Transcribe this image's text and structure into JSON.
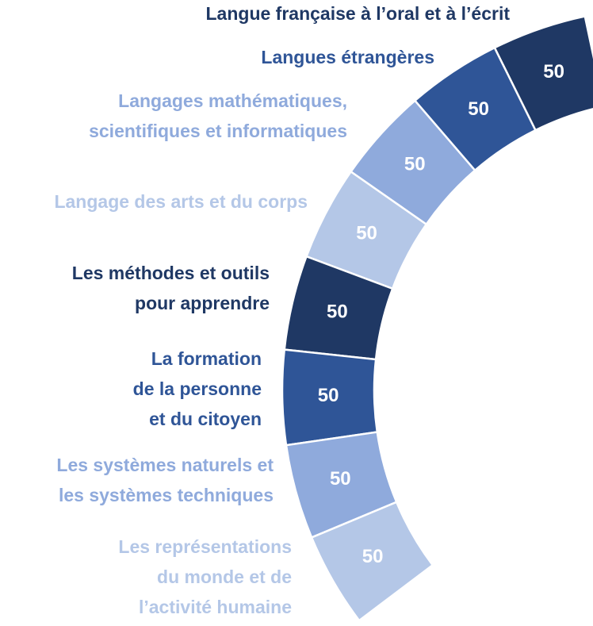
{
  "chart_data": {
    "type": "donut",
    "categories": [
      [
        "Langue française à l’oral et à l’écrit"
      ],
      [
        "Langues étrangères"
      ],
      [
        "Langages mathématiques,",
        "scientifiques et informatiques"
      ],
      [
        "Langage des arts et du corps"
      ],
      [
        "Les méthodes et outils",
        "pour apprendre"
      ],
      [
        "La formation",
        "de la personne",
        "et du citoyen"
      ],
      [
        "Les systèmes naturels et",
        "les systèmes techniques"
      ],
      [
        "Les représentations",
        "du monde et de",
        "l’activité humaine"
      ]
    ],
    "values": [
      50,
      50,
      50,
      50,
      50,
      50,
      50,
      50
    ],
    "colors": [
      "#1f3864",
      "#2f5597",
      "#8faadc",
      "#b4c7e7",
      "#1f3864",
      "#2f5597",
      "#8faadc",
      "#b4c7e7"
    ]
  }
}
